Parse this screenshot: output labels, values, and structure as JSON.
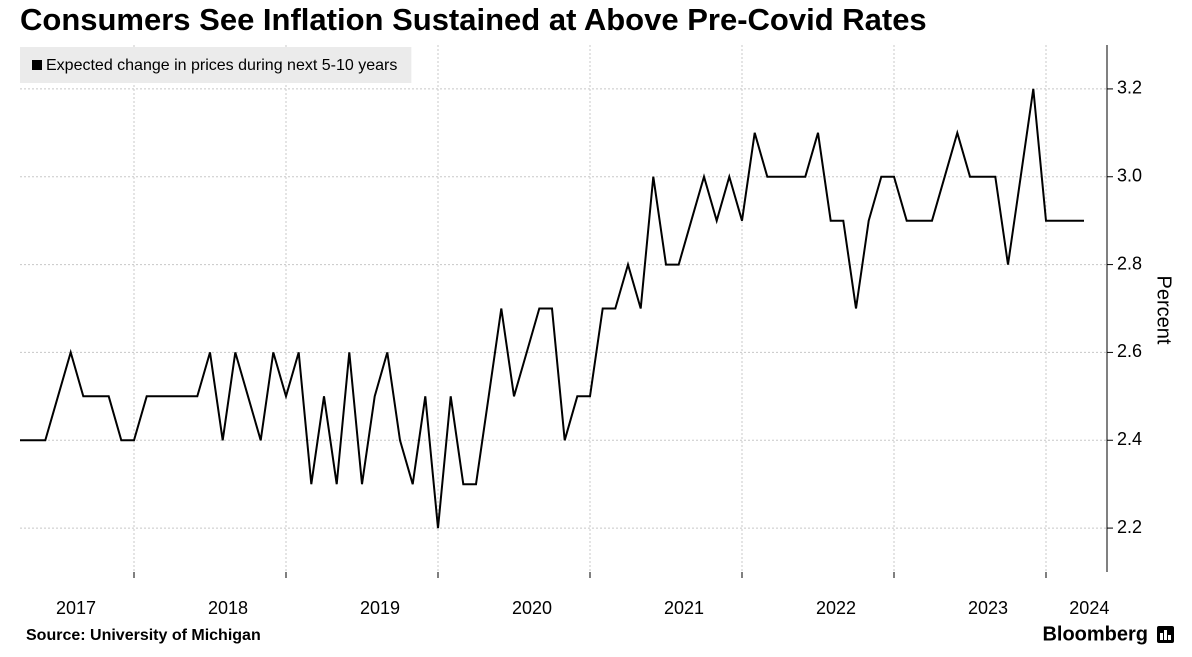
{
  "chart_data": {
    "type": "line",
    "title": "Consumers See Inflation Sustained at Above Pre-Covid Rates",
    "y_label": "Percent",
    "source": "Source: University of Michigan",
    "brand": "Bloomberg",
    "categories": [
      null,
      null,
      null,
      "2017",
      null,
      null,
      null,
      null,
      null,
      null,
      null,
      null,
      null,
      null,
      null,
      "2018",
      null,
      null,
      null,
      null,
      null,
      null,
      null,
      null,
      null,
      null,
      null,
      "2019",
      null,
      null,
      null,
      null,
      null,
      null,
      null,
      null,
      null,
      null,
      null,
      "2020",
      null,
      null,
      null,
      null,
      null,
      null,
      null,
      null,
      null,
      null,
      null,
      "2021",
      null,
      null,
      null,
      null,
      null,
      null,
      null,
      null,
      null,
      null,
      null,
      "2022",
      null,
      null,
      null,
      null,
      null,
      null,
      null,
      null,
      null,
      null,
      null,
      "2023",
      null,
      null,
      null,
      null,
      null,
      null,
      null,
      "2024",
      null
    ],
    "series": [
      {
        "name": "Expected change in prices during next 5-10 years",
        "color": "#000000",
        "values": [
          2.4,
          2.4,
          2.4,
          2.5,
          2.6,
          2.5,
          2.5,
          2.5,
          2.4,
          2.4,
          2.5,
          2.5,
          2.5,
          2.5,
          2.5,
          2.6,
          2.4,
          2.6,
          2.5,
          2.4,
          2.6,
          2.5,
          2.6,
          2.3,
          2.5,
          2.3,
          2.6,
          2.3,
          2.5,
          2.6,
          2.4,
          2.3,
          2.5,
          2.2,
          2.5,
          2.3,
          2.3,
          2.5,
          2.7,
          2.5,
          2.6,
          2.7,
          2.7,
          2.4,
          2.5,
          2.5,
          2.7,
          2.7,
          2.8,
          2.7,
          3.0,
          2.8,
          2.8,
          2.9,
          3.0,
          2.9,
          3.0,
          2.9,
          3.1,
          3.0,
          3.0,
          3.0,
          3.0,
          3.1,
          2.9,
          2.9,
          2.7,
          2.9,
          3.0,
          3.0,
          2.9,
          2.9,
          2.9,
          3.0,
          3.1,
          3.0,
          3.0,
          3.0,
          2.8,
          3.0,
          3.2,
          2.9,
          2.9,
          2.9,
          2.9
        ]
      }
    ],
    "ylim": [
      2.1,
      3.3
    ],
    "yticks": [
      2.2,
      2.4,
      2.6,
      2.8,
      {
        "value": 3,
        "label": "3.0"
      },
      3.2
    ],
    "grid": true,
    "legend": "top-left"
  }
}
